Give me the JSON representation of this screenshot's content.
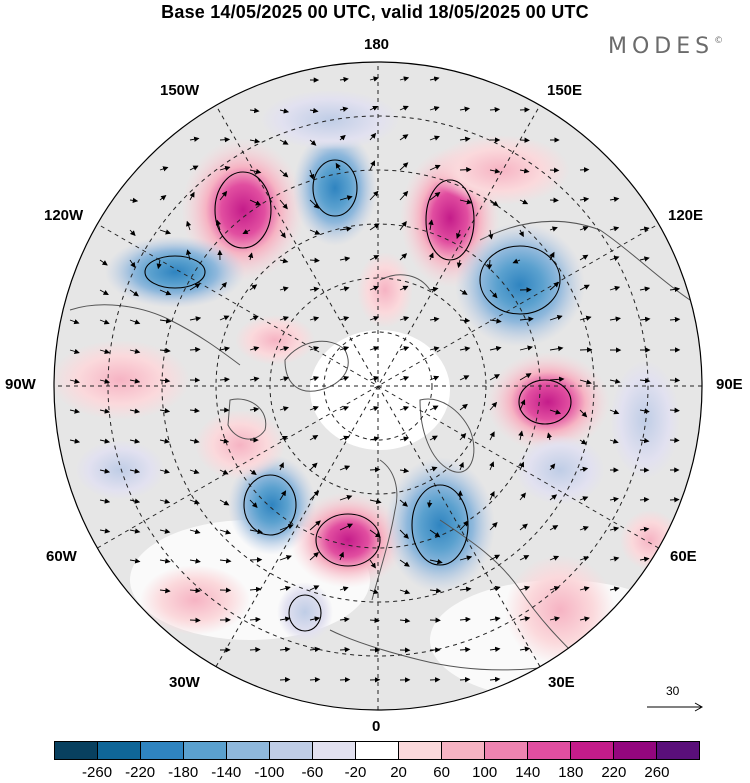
{
  "title": "Base 14/05/2025 00 UTC, valid 18/05/2025 00 UTC",
  "brand": "MODES",
  "brand_mark": "©",
  "longitudes": {
    "top": "180",
    "bottom": "0",
    "left": "90W",
    "right": "90E",
    "upper_left_1": "150W",
    "upper_left_2": "120W",
    "upper_right_1": "150E",
    "upper_right_2": "120E",
    "lower_left_1": "60W",
    "lower_left_2": "30W",
    "lower_right_1": "60E",
    "lower_right_2": "30E"
  },
  "reference_vector": {
    "label": "30"
  },
  "colorbar": {
    "colors": [
      "#08405f",
      "#0f6698",
      "#2f84c0",
      "#5ba1cf",
      "#8fb8dc",
      "#bfcde6",
      "#e2e1f0",
      "#ffffff",
      "#fbd9dc",
      "#f6b3c3",
      "#ee84b1",
      "#e14ea0",
      "#c41c8a",
      "#93067e",
      "#5a0f7a"
    ],
    "ticks": [
      "-260",
      "-220",
      "-180",
      "-140",
      "-100",
      "-60",
      "-20",
      "20",
      "60",
      "100",
      "140",
      "180",
      "220",
      "260"
    ]
  }
}
